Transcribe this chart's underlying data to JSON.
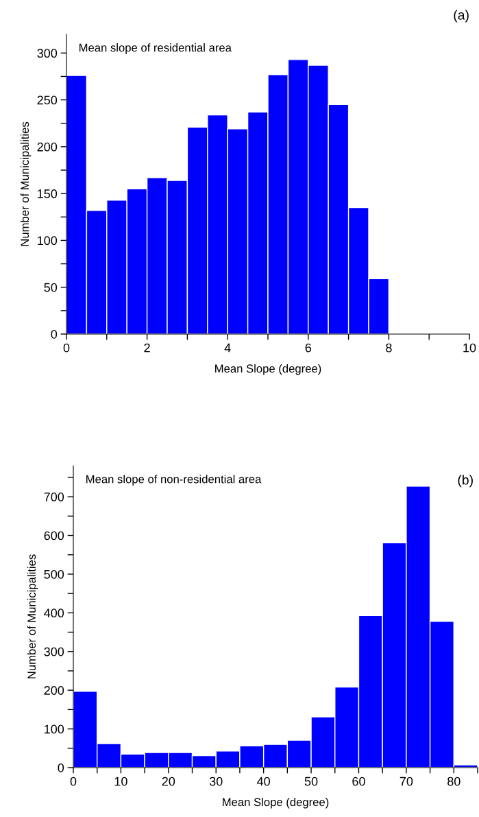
{
  "chart_data": [
    {
      "type": "histogram",
      "xlabel": "Mean Slope (degree)",
      "ylabel": "Number of Municipalities",
      "annotations": [
        "Mean slope of residential area",
        "(a)"
      ],
      "bins": [
        0,
        0.5,
        1,
        1.5,
        2,
        2.5,
        3,
        3.5,
        4,
        4.5,
        5,
        5.5,
        6,
        6.5,
        7,
        7.5,
        8
      ],
      "values": [
        276,
        132,
        143,
        155,
        167,
        164,
        221,
        234,
        219,
        237,
        277,
        293,
        287,
        245,
        135,
        59
      ],
      "color": "#0000ff",
      "xlim": [
        0,
        10
      ],
      "ylim": [
        0,
        320
      ],
      "xticks": [
        0,
        {
          "value": 1,
          "label": null
        },
        2,
        {
          "value": 3,
          "label": null
        },
        4,
        {
          "value": 5,
          "label": null
        },
        6,
        {
          "value": 7,
          "label": null
        },
        8,
        {
          "value": 9,
          "label": null
        },
        10
      ],
      "yticks": [
        0,
        {
          "value": 25,
          "label": null
        },
        50,
        {
          "value": 75,
          "label": null
        },
        100,
        {
          "value": 125,
          "label": null
        },
        150,
        {
          "value": 175,
          "label": null
        },
        200,
        {
          "value": 225,
          "label": null
        },
        250,
        {
          "value": 275,
          "label": null
        },
        300
      ]
    },
    {
      "type": "histogram",
      "xlabel": "Mean Slope (degree)",
      "ylabel": "Number of Municipalities",
      "annotations": [
        "Mean slope of non-residential area",
        "(b)"
      ],
      "bins": [
        0,
        5,
        10,
        15,
        20,
        25,
        30,
        35,
        40,
        45,
        50,
        55,
        60,
        65,
        70,
        75,
        80,
        85
      ],
      "values": [
        197,
        62,
        35,
        39,
        39,
        31,
        43,
        56,
        60,
        71,
        131,
        208,
        393,
        581,
        727,
        378,
        7
      ],
      "color": "#0000ff",
      "xlim": [
        0,
        85
      ],
      "ylim": [
        0,
        780
      ],
      "xticks": [
        0,
        {
          "value": 5,
          "label": null
        },
        10,
        {
          "value": 15,
          "label": null
        },
        20,
        {
          "value": 25,
          "label": null
        },
        30,
        {
          "value": 35,
          "label": null
        },
        40,
        {
          "value": 45,
          "label": null
        },
        50,
        {
          "value": 55,
          "label": null
        },
        60,
        {
          "value": 65,
          "label": null
        },
        70,
        {
          "value": 75,
          "label": null
        },
        80,
        {
          "value": 85,
          "label": null
        }
      ],
      "yticks": [
        0,
        {
          "value": 50,
          "label": null
        },
        100,
        {
          "value": 150,
          "label": null
        },
        200,
        {
          "value": 250,
          "label": null
        },
        300,
        {
          "value": 350,
          "label": null
        },
        400,
        {
          "value": 450,
          "label": null
        },
        500,
        {
          "value": 550,
          "label": null
        },
        600,
        {
          "value": 650,
          "label": null
        },
        700,
        {
          "value": 750,
          "label": null
        }
      ]
    }
  ]
}
